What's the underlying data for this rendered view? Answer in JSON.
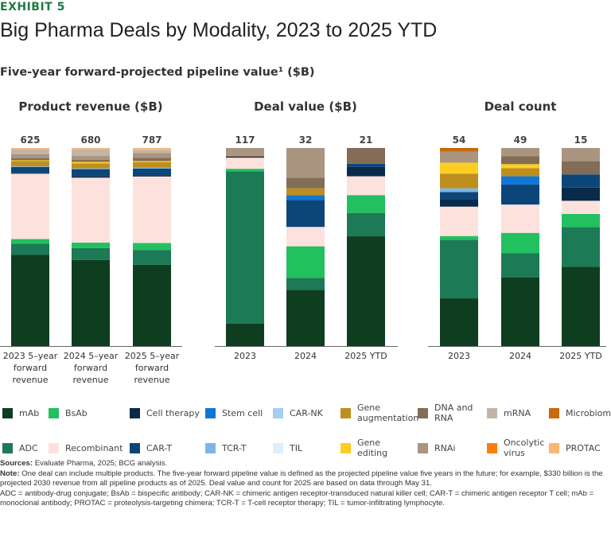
{
  "header": {
    "exhibit": "EXHIBIT 5",
    "title": "Big Pharma Deals by Modality, 2023 to 2025 YTD",
    "subtitle": "Five-year forward-projected pipeline value¹ ($B)"
  },
  "colors": {
    "mAb": "#0f3d1f",
    "ADC": "#1c7a56",
    "BsAb": "#22c05f",
    "Recombinant": "#fde1dd",
    "Cell therapy": "#0a2a4a",
    "CAR-T": "#0c4679",
    "Stem cell": "#1077d9",
    "TCR-T": "#7bb6ea",
    "CAR-NK": "#a6cdf3",
    "TIL": "#ddeefc",
    "Gene augmentation": "#be8f1e",
    "Gene editing": "#fdcd22",
    "DNA and RNA": "#846d56",
    "RNAi": "#a99580",
    "mRNA": "#c3b5a5",
    "Oncolytic virus": "#f97f0c",
    "Microbiome": "#c8690a",
    "PROTAC": "#f9b679"
  },
  "legend": [
    {
      "key": "mAb",
      "label": "mAb"
    },
    {
      "key": "BsAb",
      "label": "BsAb"
    },
    {
      "key": "Cell therapy",
      "label": "Cell therapy"
    },
    {
      "key": "Stem cell",
      "label": "Stem cell"
    },
    {
      "key": "CAR-NK",
      "label": "CAR-NK"
    },
    {
      "key": "Gene augmentation",
      "label": "Gene augmentation"
    },
    {
      "key": "DNA and RNA",
      "label": "DNA and RNA"
    },
    {
      "key": "mRNA",
      "label": "mRNA"
    },
    {
      "key": "Microbiome",
      "label": "Microbiome"
    },
    {
      "key": "ADC",
      "label": "ADC"
    },
    {
      "key": "Recombinant",
      "label": "Recombinant"
    },
    {
      "key": "CAR-T",
      "label": "CAR-T"
    },
    {
      "key": "TCR-T",
      "label": "TCR-T"
    },
    {
      "key": "TIL",
      "label": "TIL"
    },
    {
      "key": "Gene editing",
      "label": "Gene editing"
    },
    {
      "key": "RNAi",
      "label": "RNAi"
    },
    {
      "key": "Oncolytic virus",
      "label": "Oncolytic virus"
    },
    {
      "key": "PROTAC",
      "label": "PROTAC"
    }
  ],
  "chart_data": [
    {
      "type": "bar",
      "stacked": true,
      "normalized": "100% share",
      "title": "Product revenue ($B)",
      "categories": [
        "2023 5–year forward revenue",
        "2024 5–year forward revenue",
        "2025 5–year forward revenue"
      ],
      "totals": [
        "625",
        "680",
        "787"
      ],
      "series": [
        {
          "name": "mAb",
          "values": [
            46,
            43.5,
            41
          ]
        },
        {
          "name": "ADC",
          "values": [
            5.6,
            6,
            7.5
          ]
        },
        {
          "name": "BsAb",
          "values": [
            2.4,
            2.7,
            3.5
          ]
        },
        {
          "name": "Recombinant",
          "values": [
            33,
            32.8,
            33.6
          ]
        },
        {
          "name": "Cell therapy",
          "values": [
            0.4,
            0.7,
            0.7
          ]
        },
        {
          "name": "CAR-T",
          "values": [
            3,
            3.6,
            3.3
          ]
        },
        {
          "name": "TCR-T",
          "values": [
            0.3,
            0.4,
            0.4
          ]
        },
        {
          "name": "Gene augmentation",
          "values": [
            2.7,
            2.5,
            2.9
          ]
        },
        {
          "name": "Gene editing",
          "values": [
            0.4,
            0.8,
            0.5
          ]
        },
        {
          "name": "DNA and RNA",
          "values": [
            1,
            1.1,
            1.6
          ]
        },
        {
          "name": "RNAi",
          "values": [
            2,
            1.9,
            2.4
          ]
        },
        {
          "name": "mRNA",
          "values": [
            2.7,
            3.5,
            1.7
          ]
        },
        {
          "name": "PROTAC",
          "values": [
            0.5,
            0.5,
            0.9
          ]
        }
      ]
    },
    {
      "type": "bar",
      "stacked": true,
      "normalized": "100% share",
      "title": "Deal value ($B)",
      "categories": [
        "2023",
        "2024",
        "2025 YTD"
      ],
      "totals": [
        "117",
        "32",
        "21"
      ],
      "series": [
        {
          "name": "mAb",
          "values": [
            11.4,
            28.4,
            55.4
          ]
        },
        {
          "name": "ADC",
          "values": [
            76.8,
            6,
            11.8
          ]
        },
        {
          "name": "BsAb",
          "values": [
            1.3,
            16,
            9
          ]
        },
        {
          "name": "Recombinant",
          "values": [
            5.6,
            9.8,
            9.5
          ]
        },
        {
          "name": "Cell therapy",
          "values": [
            0.5,
            0,
            4.7
          ]
        },
        {
          "name": "CAR-T",
          "values": [
            0,
            13.7,
            1.6
          ]
        },
        {
          "name": "Stem cell",
          "values": [
            0,
            2.3,
            0
          ]
        },
        {
          "name": "Gene augmentation",
          "values": [
            0,
            3.5,
            0
          ]
        },
        {
          "name": "DNA and RNA",
          "values": [
            0.5,
            5.4,
            8
          ]
        },
        {
          "name": "RNAi",
          "values": [
            3.9,
            15,
            0
          ]
        }
      ]
    },
    {
      "type": "bar",
      "stacked": true,
      "normalized": "100% share",
      "title": "Deal count",
      "categories": [
        "2023",
        "2024",
        "2025 YTD"
      ],
      "totals": [
        "54",
        "49",
        "15"
      ],
      "series": [
        {
          "name": "mAb",
          "values": [
            13,
            17,
            6
          ]
        },
        {
          "name": "ADC",
          "values": [
            16,
            6,
            3
          ]
        },
        {
          "name": "BsAb",
          "values": [
            1,
            5,
            1
          ]
        },
        {
          "name": "Recombinant",
          "values": [
            8,
            7,
            1
          ]
        },
        {
          "name": "Cell therapy",
          "values": [
            2,
            0,
            1
          ]
        },
        {
          "name": "CAR-T",
          "values": [
            2,
            5,
            1
          ]
        },
        {
          "name": "Stem cell",
          "values": [
            0,
            2,
            0
          ]
        },
        {
          "name": "TCR-T",
          "values": [
            1,
            0,
            0
          ]
        },
        {
          "name": "Gene augmentation",
          "values": [
            4,
            2,
            0
          ]
        },
        {
          "name": "Gene editing",
          "values": [
            3,
            1,
            0
          ]
        },
        {
          "name": "DNA and RNA",
          "values": [
            0,
            2,
            1
          ]
        },
        {
          "name": "RNAi",
          "values": [
            3,
            2,
            1
          ]
        },
        {
          "name": "Microbiome",
          "values": [
            1,
            0,
            0
          ]
        }
      ]
    }
  ],
  "notes": {
    "sources_label": "Sources:",
    "sources": "Evaluate Pharma, 2025; BCG analysis.",
    "note_label": "Note:",
    "note": "One deal can include multiple products. The five-year forward pipeline value is defined as the projected pipeline value five years in the future; for example, $330 billion is the projected 2030 revenue from all pipeline products as of 2025. Deal value and count for 2025 are based on data through May 31.",
    "abbrev": "ADC = antibody-drug conjugate; BsAb = bispecific antibody; CAR-NK = chimeric antigen receptor-transduced natural killer cell; CAR-T = chimeric antigen receptor T cell; mAb = monoclonal antibody; PROTAC = proteolysis-targeting chimera; TCR-T = T-cell receptor therapy; TIL = tumor-infiltrating lymphocyte."
  }
}
